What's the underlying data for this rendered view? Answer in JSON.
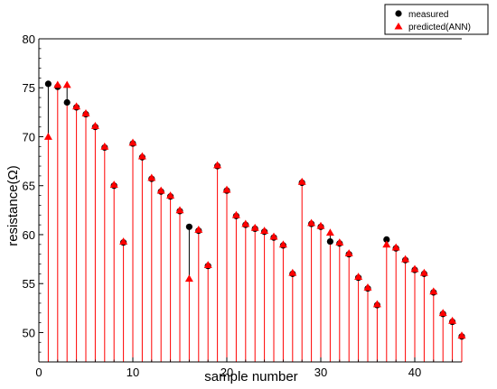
{
  "chart_data": {
    "type": "scatter",
    "title": "",
    "xlabel": "sample number",
    "ylabel": "resistance(Ω)",
    "xlim": [
      0,
      45
    ],
    "ylim": [
      47,
      80
    ],
    "xticks": [
      0,
      10,
      20,
      30,
      40
    ],
    "yticks": [
      50,
      55,
      60,
      65,
      70,
      75,
      80
    ],
    "grid": false,
    "legend_position": "top-right",
    "x": [
      1,
      2,
      3,
      4,
      5,
      6,
      7,
      8,
      9,
      10,
      11,
      12,
      13,
      14,
      15,
      16,
      17,
      18,
      19,
      20,
      21,
      22,
      23,
      24,
      25,
      26,
      27,
      28,
      29,
      30,
      31,
      32,
      33,
      34,
      35,
      36,
      37,
      38,
      39,
      40,
      41,
      42,
      43,
      44,
      45
    ],
    "series": [
      {
        "name": "measured",
        "marker": "circle",
        "color": "#000000",
        "values": [
          75.4,
          75.1,
          73.5,
          73.0,
          72.3,
          71.0,
          68.9,
          65.0,
          59.2,
          69.3,
          67.9,
          65.7,
          64.4,
          63.9,
          62.4,
          60.8,
          60.4,
          56.8,
          67.0,
          64.5,
          61.9,
          61.0,
          60.6,
          60.3,
          59.7,
          58.9,
          56.0,
          65.3,
          61.1,
          60.8,
          59.3,
          59.1,
          58.0,
          55.6,
          54.5,
          52.8,
          59.5,
          58.6,
          57.4,
          56.4,
          56.0,
          54.1,
          51.9,
          51.1,
          49.6
        ]
      },
      {
        "name": "predicted(ANN)",
        "marker": "triangle",
        "color": "#ff0000",
        "values": [
          70.0,
          75.3,
          75.3,
          73.1,
          72.4,
          71.1,
          69.0,
          65.1,
          59.3,
          69.4,
          68.0,
          65.8,
          64.5,
          64.0,
          62.5,
          55.5,
          60.5,
          56.9,
          67.1,
          64.6,
          62.0,
          61.1,
          60.7,
          60.4,
          59.8,
          59.0,
          56.1,
          65.4,
          61.2,
          60.9,
          60.2,
          59.2,
          58.1,
          55.7,
          54.6,
          52.9,
          59.0,
          58.7,
          57.5,
          56.5,
          56.1,
          54.2,
          52.0,
          51.2,
          49.7
        ]
      }
    ]
  },
  "colors": {
    "stem": "#ff0000",
    "measured": "#000000",
    "predicted": "#ff0000",
    "axis": "#000000"
  }
}
